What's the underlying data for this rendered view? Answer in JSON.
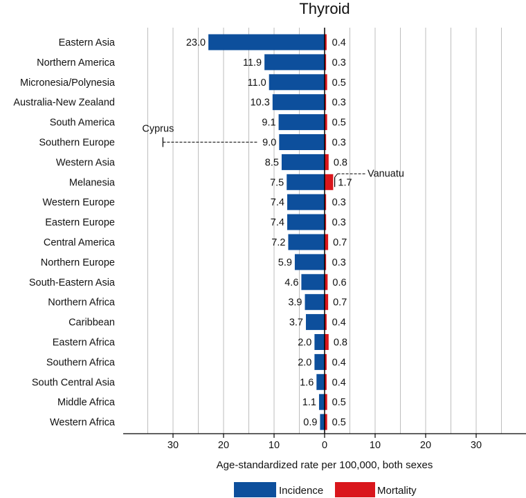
{
  "chart_data": {
    "type": "bar",
    "orientation": "horizontal-diverging",
    "title": "Thyroid",
    "xlabel": "Age-standardized rate per 100,000, both sexes",
    "xlim": [
      -40,
      40
    ],
    "x_ticks": [
      -30,
      -20,
      -10,
      0,
      10,
      20,
      30
    ],
    "x_tick_labels": [
      "30",
      "20",
      "10",
      "0",
      "10",
      "20",
      "30"
    ],
    "grid": true,
    "legend_position": "bottom",
    "categories": [
      "Eastern Asia",
      "Northern America",
      "Micronesia/Polynesia",
      "Australia-New Zealand",
      "South America",
      "Southern Europe",
      "Western Asia",
      "Melanesia",
      "Western Europe",
      "Eastern Europe",
      "Central America",
      "Northern Europe",
      "South-Eastern Asia",
      "Northern Africa",
      "Caribbean",
      "Eastern Africa",
      "Southern Africa",
      "South Central Asia",
      "Middle Africa",
      "Western Africa"
    ],
    "series": [
      {
        "name": "Incidence",
        "color": "#0d4f9c",
        "side": "left",
        "values": [
          23.0,
          11.9,
          11.0,
          10.3,
          9.1,
          9.0,
          8.5,
          7.5,
          7.4,
          7.4,
          7.2,
          5.9,
          4.6,
          3.9,
          3.7,
          2.0,
          2.0,
          1.6,
          1.1,
          0.9
        ],
        "labels": [
          "23.0",
          "11.9",
          "11.0",
          "10.3",
          "9.1",
          "9.0",
          "8.5",
          "7.5",
          "7.4",
          "7.4",
          "7.2",
          "5.9",
          "4.6",
          "3.9",
          "3.7",
          "2.0",
          "2.0",
          "1.6",
          "1.1",
          "0.9"
        ]
      },
      {
        "name": "Mortality",
        "color": "#d9161c",
        "side": "right",
        "values": [
          0.4,
          0.3,
          0.5,
          0.3,
          0.5,
          0.3,
          0.8,
          1.7,
          0.3,
          0.3,
          0.7,
          0.3,
          0.6,
          0.7,
          0.4,
          0.8,
          0.4,
          0.4,
          0.5,
          0.5
        ],
        "labels": [
          "0.4",
          "0.3",
          "0.5",
          "0.3",
          "0.5",
          "0.3",
          "0.8",
          "1.7",
          "0.3",
          "0.3",
          "0.7",
          "0.3",
          "0.6",
          "0.7",
          "0.4",
          "0.8",
          "0.4",
          "0.4",
          "0.5",
          "0.5"
        ]
      }
    ],
    "annotations": [
      {
        "text": "Cyprus",
        "category": "Southern Europe",
        "series": "Incidence",
        "value": 32
      },
      {
        "text": "Vanuatu",
        "category": "Melanesia",
        "series": "Mortality",
        "value": 2
      }
    ]
  }
}
